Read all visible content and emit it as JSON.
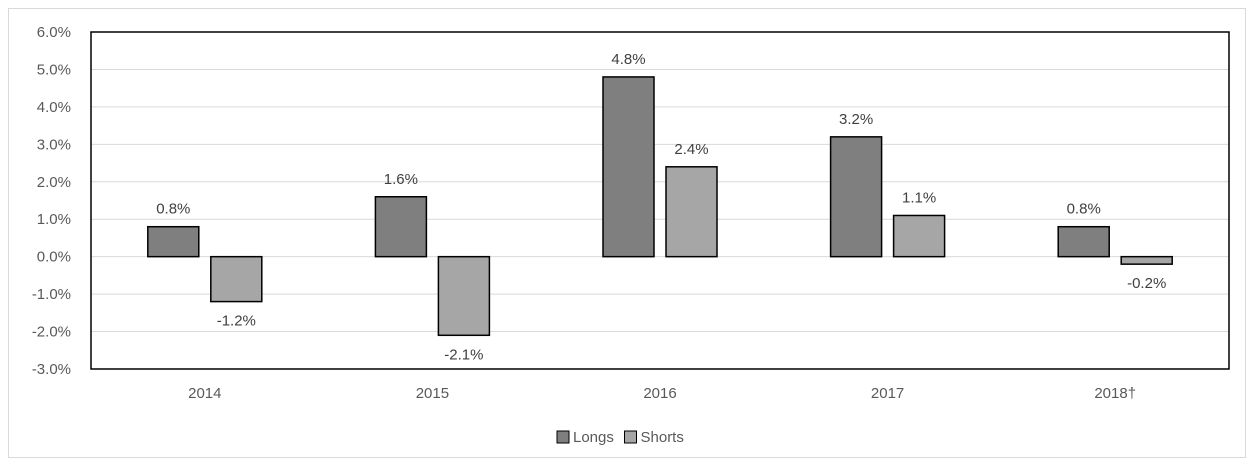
{
  "chart_data": {
    "type": "bar",
    "categories": [
      "2014",
      "2015",
      "2016",
      "2017",
      "2018†"
    ],
    "series": [
      {
        "name": "Longs",
        "values": [
          0.8,
          1.6,
          4.8,
          3.2,
          0.8
        ],
        "color": "#7f7f7f"
      },
      {
        "name": "Shorts",
        "values": [
          -1.2,
          -2.1,
          2.4,
          1.1,
          -0.2
        ],
        "color": "#a6a6a6"
      }
    ],
    "data_labels": {
      "Longs": [
        "0.8%",
        "1.6%",
        "4.8%",
        "3.2%",
        "0.8%"
      ],
      "Shorts": [
        "-1.2%",
        "-2.1%",
        "2.4%",
        "1.1%",
        "-0.2%"
      ]
    },
    "y_ticks": [
      "6.0%",
      "5.0%",
      "4.0%",
      "3.0%",
      "2.0%",
      "1.0%",
      "0.0%",
      "-1.0%",
      "-2.0%",
      "-3.0%"
    ],
    "ylim": [
      -3.0,
      6.0
    ],
    "y_unit": "%",
    "grid": true,
    "legend_position": "bottom",
    "title": "",
    "xlabel": "",
    "ylabel": ""
  }
}
